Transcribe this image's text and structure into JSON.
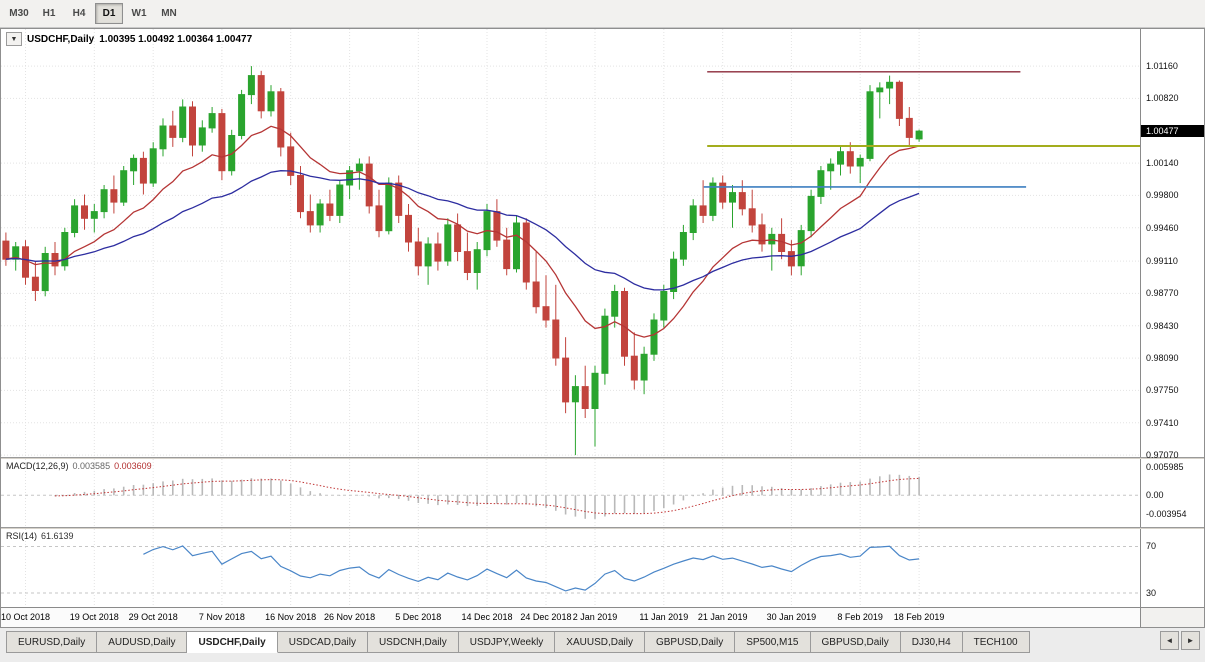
{
  "toolbar": {
    "timeframes": [
      {
        "label": "M30",
        "active": false
      },
      {
        "label": "H1",
        "active": false
      },
      {
        "label": "H4",
        "active": false
      },
      {
        "label": "D1",
        "active": true
      },
      {
        "label": "W1",
        "active": false
      },
      {
        "label": "MN",
        "active": false
      }
    ]
  },
  "chart": {
    "title_symbol": "USDCHF,Daily",
    "title_ohlc": "1.00395 1.00492 1.00364 1.00477",
    "dropdown_icon": "▼"
  },
  "chart_data": {
    "type": "candlestick",
    "title": "USDCHF,Daily",
    "ohlc_display": {
      "open": "1.00395",
      "high": "1.00492",
      "low": "1.00364",
      "close": "1.00477"
    },
    "current_price": "1.00477",
    "price_range": [
      0.9705,
      1.0155
    ],
    "price_axis_labels": [
      "1.01160",
      "1.00820",
      "1.00140",
      "0.99800",
      "0.99460",
      "0.99110",
      "0.98770",
      "0.98430",
      "0.98090",
      "0.97750",
      "0.97410",
      "0.97070"
    ],
    "total_slots": 116,
    "x_axis_labels": [
      {
        "text": "10 Oct 2018",
        "slot": 2
      },
      {
        "text": "19 Oct 2018",
        "slot": 9
      },
      {
        "text": "29 Oct 2018",
        "slot": 15
      },
      {
        "text": "7 Nov 2018",
        "slot": 22
      },
      {
        "text": "16 Nov 2018",
        "slot": 29
      },
      {
        "text": "26 Nov 2018",
        "slot": 35
      },
      {
        "text": "5 Dec 2018",
        "slot": 42
      },
      {
        "text": "14 Dec 2018",
        "slot": 49
      },
      {
        "text": "24 Dec 2018",
        "slot": 55
      },
      {
        "text": "2 Jan 2019",
        "slot": 60
      },
      {
        "text": "11 Jan 2019",
        "slot": 67
      },
      {
        "text": "21 Jan 2019",
        "slot": 73
      },
      {
        "text": "30 Jan 2019",
        "slot": 80
      },
      {
        "text": "8 Feb 2019",
        "slot": 87
      },
      {
        "text": "18 Feb 2019",
        "slot": 93
      }
    ],
    "candles": [
      [
        0.9932,
        0.9941,
        0.9906,
        0.9913
      ],
      [
        0.9913,
        0.9931,
        0.9901,
        0.9926
      ],
      [
        0.9926,
        0.9933,
        0.9886,
        0.9894
      ],
      [
        0.9894,
        0.9911,
        0.9869,
        0.988
      ],
      [
        0.988,
        0.9926,
        0.9874,
        0.9919
      ],
      [
        0.9919,
        0.9931,
        0.9896,
        0.9906
      ],
      [
        0.9906,
        0.9946,
        0.9901,
        0.9941
      ],
      [
        0.9941,
        0.9976,
        0.9936,
        0.9969
      ],
      [
        0.9969,
        0.9981,
        0.9944,
        0.9956
      ],
      [
        0.9956,
        0.9971,
        0.9941,
        0.9963
      ],
      [
        0.9963,
        0.9991,
        0.9956,
        0.9986
      ],
      [
        0.9986,
        1.0001,
        0.9961,
        0.9973
      ],
      [
        0.9973,
        1.0011,
        0.9969,
        1.0006
      ],
      [
        1.0006,
        1.0023,
        0.9991,
        1.0019
      ],
      [
        1.0019,
        1.0026,
        0.9981,
        0.9993
      ],
      [
        0.9993,
        1.0036,
        0.9989,
        1.0029
      ],
      [
        1.0029,
        1.0061,
        1.0021,
        1.0053
      ],
      [
        1.0053,
        1.0069,
        1.0031,
        1.0041
      ],
      [
        1.0041,
        1.0081,
        1.0036,
        1.0073
      ],
      [
        1.0073,
        1.0079,
        1.0021,
        1.0033
      ],
      [
        1.0033,
        1.0059,
        1.0026,
        1.0051
      ],
      [
        1.0051,
        1.0073,
        1.0046,
        1.0066
      ],
      [
        1.0066,
        1.0071,
        0.9996,
        1.0006
      ],
      [
        1.0006,
        1.0049,
        1.0001,
        1.0043
      ],
      [
        1.0043,
        1.0091,
        1.0039,
        1.0086
      ],
      [
        1.0086,
        1.0116,
        1.0076,
        1.0106
      ],
      [
        1.0106,
        1.0111,
        1.0061,
        1.0069
      ],
      [
        1.0069,
        1.0096,
        1.0063,
        1.0089
      ],
      [
        1.0089,
        1.0093,
        1.0021,
        1.0031
      ],
      [
        1.0031,
        1.0046,
        0.9991,
        1.0001
      ],
      [
        1.0001,
        1.0011,
        0.9956,
        0.9963
      ],
      [
        0.9963,
        0.9981,
        0.9941,
        0.9949
      ],
      [
        0.9949,
        0.9976,
        0.9941,
        0.9971
      ],
      [
        0.9971,
        0.9986,
        0.9953,
        0.9959
      ],
      [
        0.9959,
        0.9996,
        0.9951,
        0.9991
      ],
      [
        0.9991,
        1.0011,
        0.9976,
        1.0006
      ],
      [
        1.0006,
        1.0019,
        0.9986,
        1.0013
      ],
      [
        1.0013,
        1.0021,
        0.9961,
        0.9969
      ],
      [
        0.9969,
        0.9986,
        0.9936,
        0.9943
      ],
      [
        0.9943,
        0.9999,
        0.9939,
        0.9993
      ],
      [
        0.9993,
        1.0001,
        0.9951,
        0.9959
      ],
      [
        0.9959,
        0.9971,
        0.9921,
        0.9931
      ],
      [
        0.9931,
        0.9946,
        0.9896,
        0.9906
      ],
      [
        0.9906,
        0.9936,
        0.9886,
        0.9929
      ],
      [
        0.9929,
        0.9941,
        0.9901,
        0.9911
      ],
      [
        0.9911,
        0.9956,
        0.9906,
        0.9949
      ],
      [
        0.9949,
        0.9961,
        0.9911,
        0.9921
      ],
      [
        0.9921,
        0.9941,
        0.9891,
        0.9899
      ],
      [
        0.9899,
        0.9931,
        0.9881,
        0.9923
      ],
      [
        0.9923,
        0.9971,
        0.9916,
        0.9963
      ],
      [
        0.9963,
        0.9976,
        0.9926,
        0.9933
      ],
      [
        0.9933,
        0.9946,
        0.9896,
        0.9903
      ],
      [
        0.9903,
        0.9959,
        0.9899,
        0.9951
      ],
      [
        0.9951,
        0.9956,
        0.9881,
        0.9889
      ],
      [
        0.9889,
        0.9921,
        0.9856,
        0.9863
      ],
      [
        0.9863,
        0.9896,
        0.9841,
        0.9849
      ],
      [
        0.9849,
        0.9886,
        0.9801,
        0.9809
      ],
      [
        0.9809,
        0.9831,
        0.9751,
        0.9763
      ],
      [
        0.9763,
        0.9791,
        0.9707,
        0.9779
      ],
      [
        0.9779,
        0.9801,
        0.9746,
        0.9756
      ],
      [
        0.9756,
        0.9801,
        0.9716,
        0.9793
      ],
      [
        0.9793,
        0.9861,
        0.9781,
        0.9853
      ],
      [
        0.9853,
        0.9886,
        0.9841,
        0.9879
      ],
      [
        0.9879,
        0.9883,
        0.9801,
        0.9811
      ],
      [
        0.9811,
        0.9836,
        0.9776,
        0.9786
      ],
      [
        0.9786,
        0.9821,
        0.9771,
        0.9813
      ],
      [
        0.9813,
        0.9856,
        0.9806,
        0.9849
      ],
      [
        0.9849,
        0.9886,
        0.9841,
        0.9879
      ],
      [
        0.9879,
        0.9921,
        0.9871,
        0.9913
      ],
      [
        0.9913,
        0.9949,
        0.9906,
        0.9941
      ],
      [
        0.9941,
        0.9976,
        0.9933,
        0.9969
      ],
      [
        0.9969,
        0.9996,
        0.9951,
        0.9959
      ],
      [
        0.9959,
        0.9999,
        0.9953,
        0.9993
      ],
      [
        0.9993,
        1.0001,
        0.9966,
        0.9973
      ],
      [
        0.9973,
        0.9991,
        0.9946,
        0.9983
      ],
      [
        0.9983,
        0.9996,
        0.9959,
        0.9966
      ],
      [
        0.9966,
        0.9986,
        0.9941,
        0.9949
      ],
      [
        0.9949,
        0.9961,
        0.9921,
        0.9929
      ],
      [
        0.9929,
        0.9946,
        0.9901,
        0.9939
      ],
      [
        0.9939,
        0.9956,
        0.9913,
        0.9921
      ],
      [
        0.9921,
        0.9933,
        0.9896,
        0.9906
      ],
      [
        0.9906,
        0.9949,
        0.9896,
        0.9943
      ],
      [
        0.9943,
        0.9986,
        0.9936,
        0.9979
      ],
      [
        0.9979,
        1.0011,
        0.9971,
        1.0006
      ],
      [
        1.0006,
        1.0019,
        0.9986,
        1.0013
      ],
      [
        1.0013,
        1.0033,
        1.0001,
        1.0026
      ],
      [
        1.0026,
        1.0036,
        1.0003,
        1.0011
      ],
      [
        1.0011,
        1.0023,
        0.9993,
        1.0019
      ],
      [
        1.0019,
        1.0096,
        1.0016,
        1.0089
      ],
      [
        1.0089,
        1.0099,
        1.0061,
        1.0093
      ],
      [
        1.0093,
        1.0106,
        1.0076,
        1.0099
      ],
      [
        1.0099,
        1.0101,
        1.0053,
        1.0061
      ],
      [
        1.0061,
        1.0073,
        1.0033,
        1.0041
      ],
      [
        1.00395,
        1.00492,
        1.00364,
        1.00477
      ]
    ],
    "colors": {
      "up_candle": "#2aa42e",
      "down_candle": "#c2443d",
      "macd_histogram": "#b9b9b9",
      "macd_signal": "#c03434",
      "rsi_line": "#4a86c8"
    },
    "moving_averages": [
      {
        "name": "ma-fast",
        "period": 13,
        "color": "#b53535"
      },
      {
        "name": "ma-slow",
        "period": 34,
        "color": "#2d2da0"
      }
    ],
    "hlines": [
      {
        "name": "resistance-line",
        "price": 1.011,
        "color": "#8b2939",
        "width": 1.3,
        "from": 0.62,
        "to": 0.895
      },
      {
        "name": "support-line-olive",
        "price": 1.0032,
        "color": "#a3ad1d",
        "width": 2.0,
        "from": 0.62,
        "to": 1.0
      },
      {
        "name": "support-line-blue",
        "price": 0.9989,
        "color": "#3d7fc1",
        "width": 1.6,
        "from": 0.617,
        "to": 0.9
      }
    ],
    "macd": {
      "label": "MACD(12,26,9)",
      "value_main": "0.003585",
      "value_signal": "0.003609",
      "params": [
        12,
        26,
        9
      ],
      "axis_labels": [
        "0.005985",
        "0.00",
        "-0.003954"
      ],
      "axis_values": [
        0.005985,
        0,
        -0.003954
      ],
      "range": [
        -0.0068,
        0.0078
      ]
    },
    "rsi": {
      "label": "RSI(14)",
      "value": "61.6139",
      "period": 14,
      "levels": [
        70,
        30
      ],
      "range": [
        18,
        85
      ]
    }
  },
  "tabs": {
    "items": [
      {
        "label": "EURUSD,Daily",
        "active": false
      },
      {
        "label": "AUDUSD,Daily",
        "active": false
      },
      {
        "label": "USDCHF,Daily",
        "active": true
      },
      {
        "label": "USDCAD,Daily",
        "active": false
      },
      {
        "label": "USDCNH,Daily",
        "active": false
      },
      {
        "label": "USDJPY,Weekly",
        "active": false
      },
      {
        "label": "XAUUSD,Daily",
        "active": false
      },
      {
        "label": "GBPUSD,Daily",
        "active": false
      },
      {
        "label": "SP500,M15",
        "active": false
      },
      {
        "label": "GBPUSD,Daily",
        "active": false
      },
      {
        "label": "DJ30,H4",
        "active": false
      },
      {
        "label": "TECH100",
        "active": false
      }
    ],
    "scroll_left": "◄",
    "scroll_right": "►"
  }
}
